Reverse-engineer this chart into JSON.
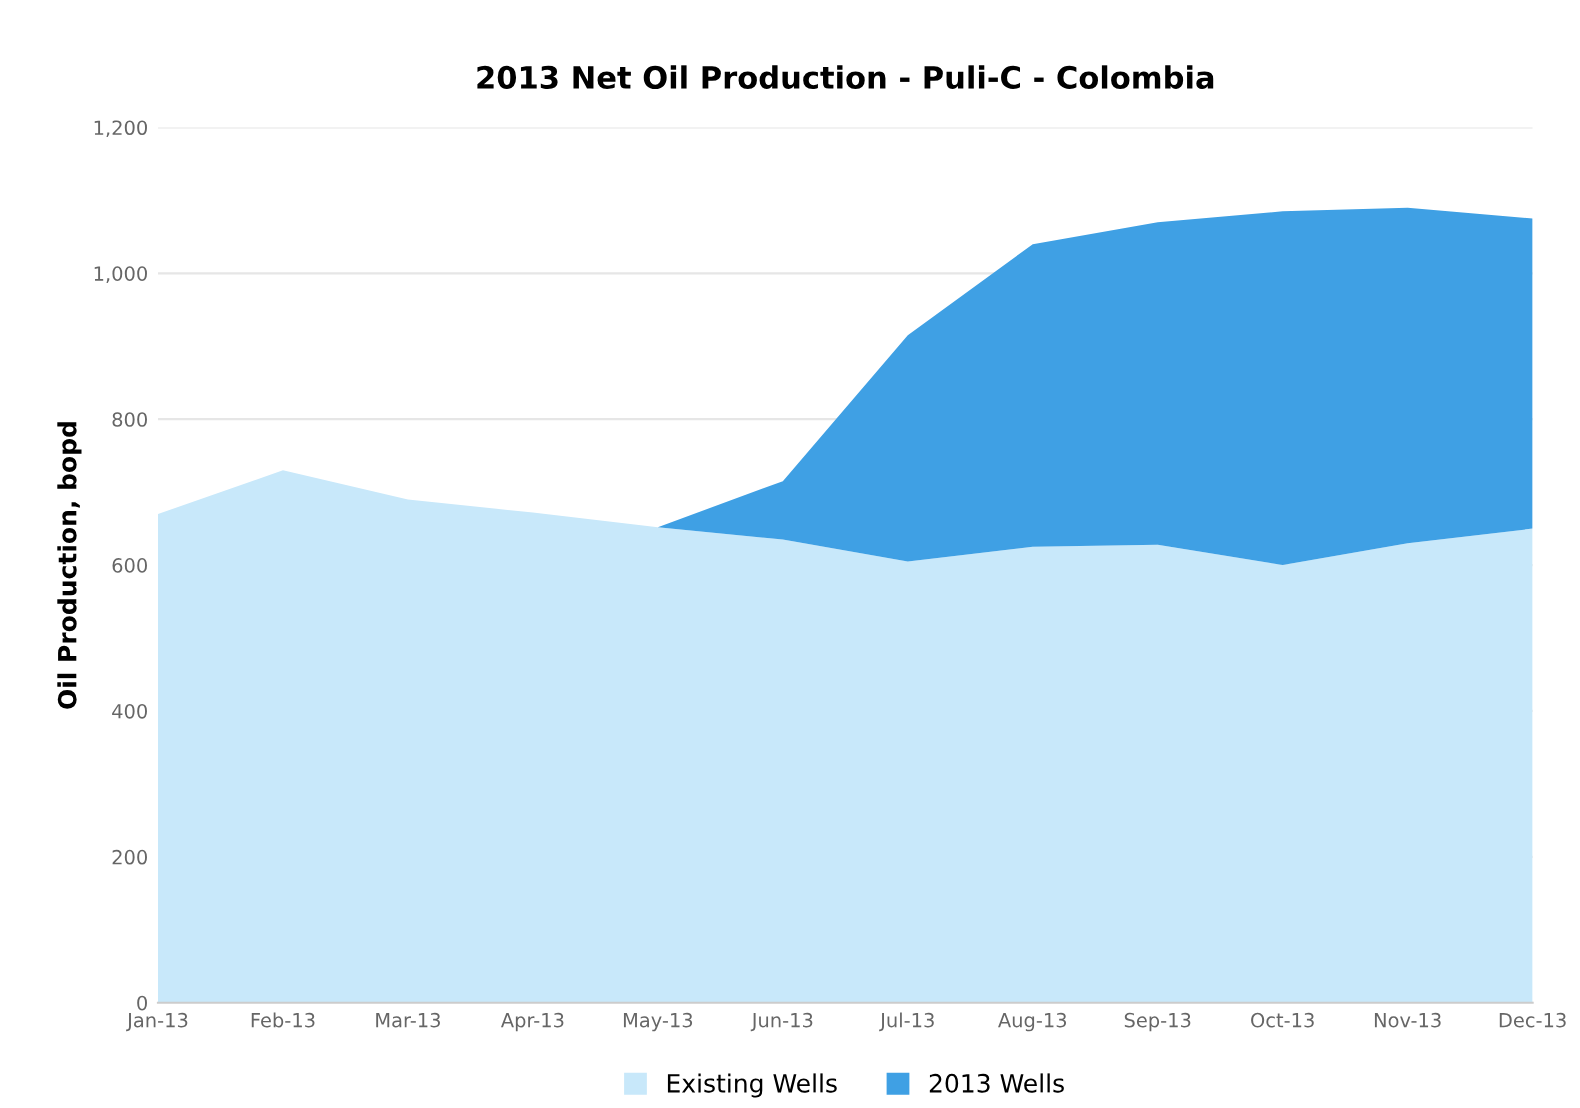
{
  "chart_data": {
    "type": "area",
    "stacked": true,
    "title": "2013 Net Oil Production - Puli-C - Colombia",
    "ylabel": "Oil Production, bopd",
    "categories": [
      "Jan-13",
      "Feb-13",
      "Mar-13",
      "Apr-13",
      "May-13",
      "Jun-13",
      "Jul-13",
      "Aug-13",
      "Sep-13",
      "Oct-13",
      "Nov-13",
      "Dec-13"
    ],
    "series": [
      {
        "name": "Existing Wells",
        "color": "#c8e8fa",
        "values": [
          670,
          730,
          690,
          672,
          652,
          635,
          605,
          625,
          628,
          600,
          630,
          650
        ]
      },
      {
        "name": "2013 Wells",
        "color": "#3fa0e4",
        "values": [
          0,
          0,
          0,
          0,
          0,
          80,
          310,
          415,
          442,
          485,
          460,
          425
        ]
      }
    ],
    "ylim": [
      0,
      1200
    ],
    "yticks": [
      0,
      200,
      400,
      600,
      800,
      {
        "value": 1000,
        "label": "1,000"
      },
      {
        "value": 1200,
        "label": "1,200"
      }
    ],
    "grid": "y",
    "legend": "bottom"
  }
}
